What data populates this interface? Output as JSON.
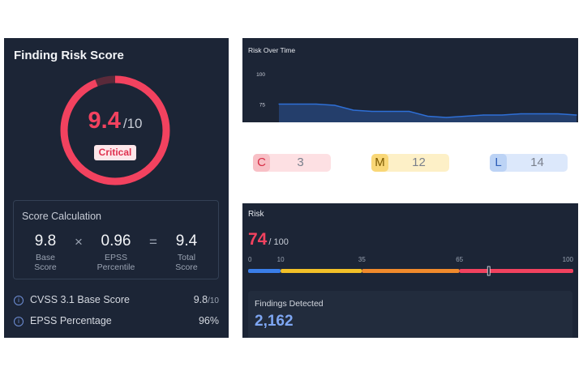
{
  "finding_card": {
    "title": "Finding Risk Score",
    "score": "9.4",
    "score_max": "/10",
    "score_fraction": 0.94,
    "severity": "Critical",
    "calc": {
      "title": "Score Calculation",
      "base": {
        "value": "9.8",
        "label_1": "Base",
        "label_2": "Score"
      },
      "multiply": "×",
      "epss": {
        "value": "0.96",
        "label_1": "EPSS",
        "label_2": "Percentile"
      },
      "equals": "=",
      "total": {
        "value": "9.4",
        "label_1": "Total",
        "label_2": "Score"
      }
    },
    "rows": [
      {
        "icon": "info-icon",
        "label": "CVSS 3.1 Base Score",
        "value": "9.8",
        "suffix": "/10"
      },
      {
        "icon": "info-icon",
        "label": "EPSS Percentage",
        "value": "96%",
        "suffix": ""
      }
    ],
    "colors": {
      "accent": "#f2425f",
      "track": "#5a2a3a"
    }
  },
  "risk_over_time": {
    "title": "Risk Over Time",
    "chart_data": {
      "type": "area",
      "title": "Risk Over Time",
      "y_ticks": [
        "100",
        "75"
      ],
      "x": [
        0,
        1,
        2,
        3,
        4,
        5,
        6,
        7,
        8,
        9,
        10,
        11,
        12,
        13,
        14,
        15,
        16
      ],
      "values": [
        75,
        75,
        75,
        74,
        70,
        69,
        69,
        69,
        65,
        64,
        65,
        66,
        66,
        67,
        67,
        67,
        66
      ],
      "ylim": [
        60,
        100
      ],
      "color": "#2e6fd6"
    }
  },
  "severity_counts": [
    {
      "letter": "C",
      "count": "3"
    },
    {
      "letter": "M",
      "count": "12"
    },
    {
      "letter": "L",
      "count": "14"
    }
  ],
  "risk_card": {
    "title": "Risk",
    "value": "74",
    "max": "/ 100",
    "value_fraction": 0.74,
    "scale_ticks": [
      "0",
      "10",
      "35",
      "65",
      "100"
    ],
    "scale_segments": [
      {
        "from": 0,
        "to": 10,
        "color": "#3a7ee8"
      },
      {
        "from": 10,
        "to": 35,
        "color": "#f2c028"
      },
      {
        "from": 35,
        "to": 65,
        "color": "#f08a2c"
      },
      {
        "from": 65,
        "to": 100,
        "color": "#f2425f"
      }
    ],
    "marker_value": 74,
    "findings_title": "Findings Detected",
    "findings_value": "2,162"
  }
}
